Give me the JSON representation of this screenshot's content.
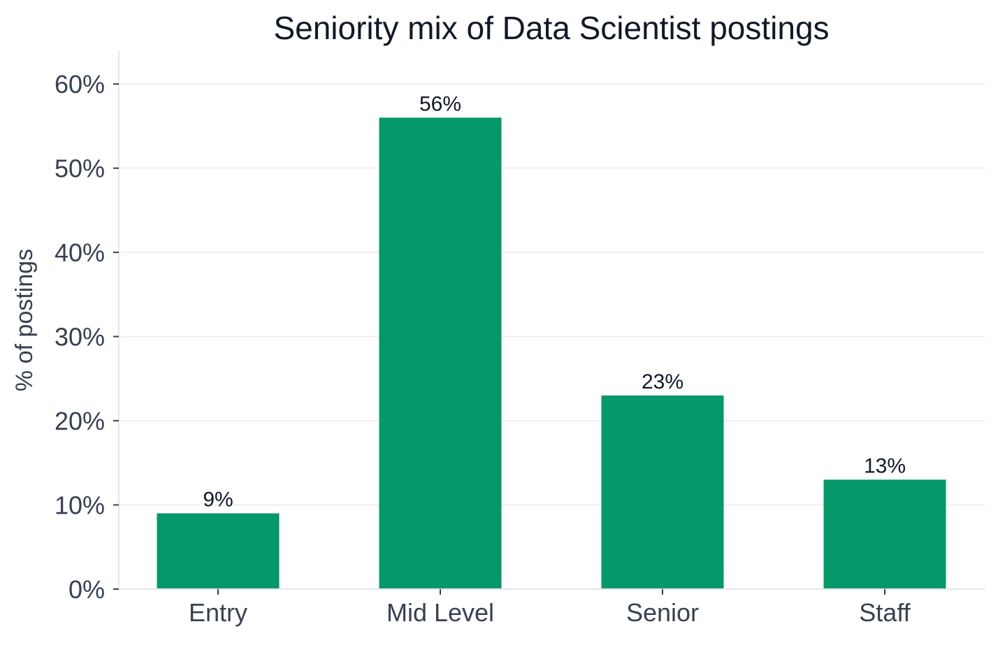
{
  "chart_data": {
    "type": "bar",
    "title": "Seniority mix of Data Scientist postings",
    "xlabel": "",
    "ylabel": "% of postings",
    "categories": [
      "Entry",
      "Mid Level",
      "Senior",
      "Staff"
    ],
    "values": [
      9,
      56,
      23,
      13
    ],
    "data_labels": [
      "9%",
      "56%",
      "23%",
      "13%"
    ],
    "ylim": [
      0,
      64
    ],
    "yticks": [
      0,
      10,
      20,
      30,
      40,
      50,
      60
    ],
    "ytick_labels": [
      "0%",
      "10%",
      "20%",
      "30%",
      "40%",
      "50%",
      "60%"
    ],
    "grid": "horizontal",
    "colors": {
      "bar": "#06976a",
      "grid": "#eef0f3",
      "axis": "#e5e7eb"
    }
  }
}
